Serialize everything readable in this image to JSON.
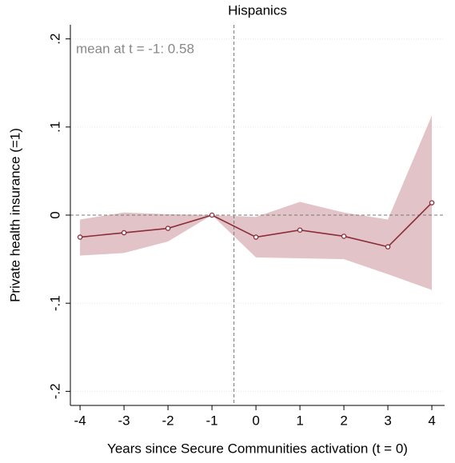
{
  "chart_data": {
    "type": "line",
    "title": "Hispanics",
    "x_label": "Years since Secure Communities activation (t = 0)",
    "y_label": "Private health insurance (=1)",
    "annotation": "mean at t = -1: 0.58",
    "x": [
      -4,
      -3,
      -2,
      -1,
      0,
      1,
      2,
      3,
      4
    ],
    "values": [
      -0.025,
      -0.02,
      -0.015,
      0,
      -0.025,
      -0.017,
      -0.024,
      -0.036,
      0.014
    ],
    "ci_upper": [
      -0.005,
      0.003,
      0.001,
      0,
      -0.002,
      0.015,
      0.003,
      -0.005,
      0.113
    ],
    "ci_lower": [
      -0.046,
      -0.043,
      -0.03,
      0,
      -0.048,
      -0.049,
      -0.05,
      -0.067,
      -0.085
    ],
    "color": "#8c2d3a",
    "band_color": "#e2c3c7",
    "xlim": [
      -4.22,
      4.29
    ],
    "ylim": [
      -0.216,
      0.216
    ],
    "xticks": [
      -4,
      -3,
      -2,
      -1,
      0,
      1,
      2,
      3,
      4
    ],
    "yticks": [
      {
        "value": -0.2,
        "label": "-.2"
      },
      {
        "value": -0.1,
        "label": "-.1"
      },
      0,
      {
        "value": 0.1,
        "label": ".1"
      },
      {
        "value": 0.2,
        "label": ".2"
      }
    ],
    "vline": -0.5,
    "hline": 0,
    "grid": true
  }
}
